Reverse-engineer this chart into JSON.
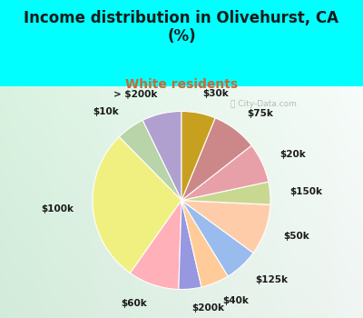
{
  "title": "Income distribution in Olivehurst, CA\n(%)",
  "subtitle": "White residents",
  "background_color": "#00ffff",
  "labels": [
    "> $200k",
    "$10k",
    "$100k",
    "$60k",
    "$200k",
    "$40k",
    "$125k",
    "$50k",
    "$150k",
    "$20k",
    "$75k",
    "$30k"
  ],
  "values": [
    7,
    5,
    27,
    9,
    4,
    5,
    6,
    9,
    4,
    7,
    8,
    6
  ],
  "colors": [
    "#b0a0d0",
    "#b8d4a8",
    "#f0f080",
    "#ffb0b8",
    "#9898e0",
    "#ffcc99",
    "#99bbee",
    "#ffccaa",
    "#c8d890",
    "#e8a0a8",
    "#cc8888",
    "#c8a020"
  ],
  "startangle": 90,
  "label_fontsize": 7.5,
  "title_fontsize": 12,
  "subtitle_fontsize": 10,
  "subtitle_color": "#cc6633",
  "watermark": "City-Data.com"
}
